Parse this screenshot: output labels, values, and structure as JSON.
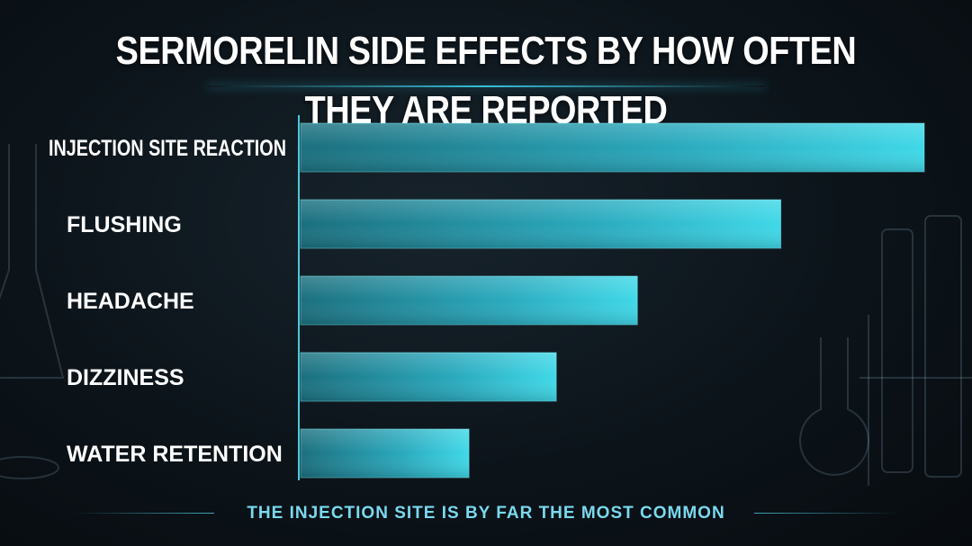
{
  "chart_data": {
    "type": "bar",
    "orientation": "horizontal",
    "title": "SERMORELIN SIDE EFFECTS BY HOW OFTEN THEY ARE REPORTED",
    "categories": [
      "INJECTION SITE REACTION",
      "FLUSHING",
      "HEADACHE",
      "DIZZINESS",
      "WATER RETENTION"
    ],
    "values": [
      100,
      77,
      54,
      41,
      27
    ],
    "xlim": [
      0,
      100
    ],
    "grid": false,
    "legend": "none",
    "bar_color": "#36c9db",
    "annotation": "THE INJECTION SITE IS BY FAR THE MOST COMMON"
  }
}
